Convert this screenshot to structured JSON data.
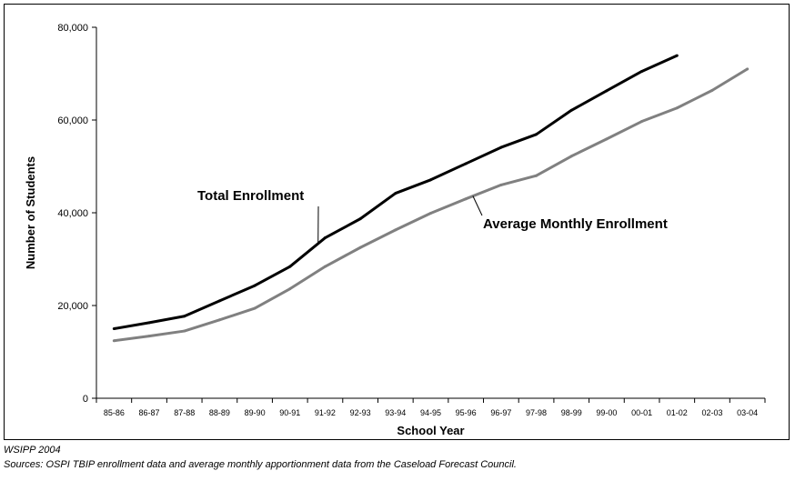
{
  "chart_data": {
    "type": "line",
    "title": "",
    "xlabel": "School Year",
    "ylabel": "Number of Students",
    "ylim": [
      0,
      80000
    ],
    "y_ticks": [
      0,
      20000,
      40000,
      60000,
      80000
    ],
    "y_tick_labels": [
      "0",
      "20,000",
      "40,000",
      "60,000",
      "80,000"
    ],
    "categories": [
      "85-86",
      "86-87",
      "87-88",
      "88-89",
      "89-90",
      "90-91",
      "91-92",
      "92-93",
      "93-94",
      "94-95",
      "95-96",
      "96-97",
      "97-98",
      "98-99",
      "99-00",
      "00-01",
      "01-02",
      "02-03",
      "03-04"
    ],
    "series": [
      {
        "name": "Total Enrollment",
        "color": "#000000",
        "values": [
          15000,
          16300,
          17700,
          21000,
          24300,
          28400,
          34600,
          38700,
          44200,
          47100,
          50600,
          54100,
          56900,
          62100,
          66300,
          70500,
          73900,
          null,
          null
        ]
      },
      {
        "name": "Average Monthly Enrollment",
        "color": "#808080",
        "values": [
          12400,
          13400,
          14500,
          16900,
          19400,
          23600,
          28400,
          32500,
          36300,
          39900,
          43000,
          46000,
          48000,
          52200,
          55900,
          59700,
          62600,
          66400,
          71000
        ]
      }
    ],
    "grid": false,
    "legend": "direct labels with leader lines"
  },
  "footer": {
    "credit": "WSIPP 2004",
    "sources": "Sources:  OSPI TBIP enrollment data and average monthly apportionment data from the Caseload Forecast Council."
  }
}
